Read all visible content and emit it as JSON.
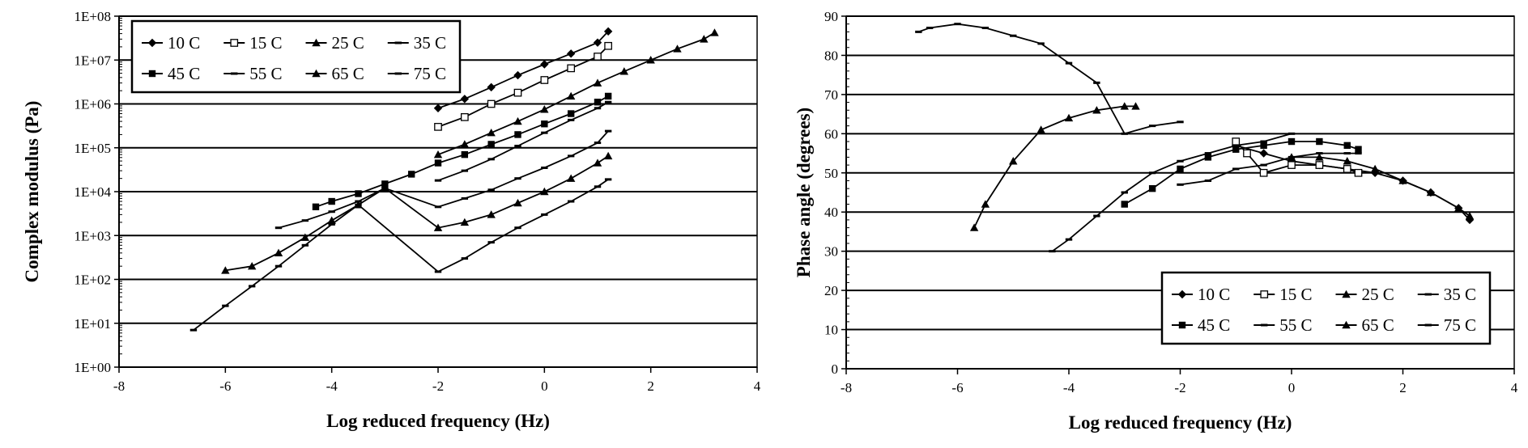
{
  "chart_data": [
    {
      "type": "line",
      "title": "",
      "xlabel": "Log reduced frequency (Hz)",
      "ylabel": "Complex modulus (Pa)",
      "xlim": [
        -8,
        4
      ],
      "ylim": [
        1,
        100000000
      ],
      "y_scale": "log",
      "xticks": [
        "-8",
        "-6",
        "-4",
        "-2",
        "0",
        "2",
        "4"
      ],
      "yticks": [
        "1E+00",
        "1E+01",
        "1E+02",
        "1E+03",
        "1E+04",
        "1E+05",
        "1E+06",
        "1E+07",
        "1E+08"
      ],
      "grid": "horizontal",
      "legend_position": "top-left",
      "series": [
        {
          "name": "10 C",
          "marker": "diamond",
          "x": [
            -2.0,
            -1.5,
            -1.0,
            -0.5,
            0.0,
            0.5,
            1.0,
            1.2
          ],
          "y": [
            800000,
            1300000,
            2400000,
            4500000,
            8000000,
            14000000,
            25000000,
            45000000
          ]
        },
        {
          "name": "15 C",
          "marker": "square-open",
          "x": [
            -2.0,
            -1.5,
            -1.0,
            -0.5,
            0.0,
            0.5,
            1.0,
            1.2
          ],
          "y": [
            300000,
            500000,
            1000000,
            1800000,
            3500000,
            6500000,
            12000000,
            21000000
          ]
        },
        {
          "name": "25 C",
          "marker": "triangle",
          "x": [
            -2.0,
            -1.5,
            -1.0,
            -0.5,
            0.0,
            0.5,
            1.0,
            1.5,
            2.0,
            2.5,
            3.0,
            3.2
          ],
          "y": [
            70000,
            120000,
            220000,
            400000,
            750000,
            1500000,
            3000000,
            5500000,
            10000000,
            18000000,
            30000000,
            42000000
          ]
        },
        {
          "name": "35 C",
          "marker": "dash",
          "x": [
            -2.0,
            -1.5,
            -1.0,
            -0.5,
            0.0,
            0.5,
            1.0,
            1.2
          ],
          "y": [
            18000,
            30000,
            55000,
            110000,
            220000,
            430000,
            800000,
            1100000
          ]
        },
        {
          "name": "45 C",
          "marker": "square",
          "x": [
            -4.3,
            -4.0,
            -3.5,
            -3.0,
            -2.5,
            -2.0,
            -1.5,
            -1.0,
            -0.5,
            0.0,
            0.5,
            1.0,
            1.2
          ],
          "y": [
            4500,
            6000,
            9000,
            15000,
            25000,
            45000,
            70000,
            120000,
            200000,
            350000,
            600000,
            1100000,
            1500000
          ]
        },
        {
          "name": "55 C",
          "marker": "dash",
          "x": [
            -5.0,
            -4.5,
            -4.0,
            -3.5,
            -3.0,
            -2.0,
            -1.5,
            -1.0,
            -0.5,
            0.0,
            0.5,
            1.0,
            1.2
          ],
          "y": [
            1500,
            2200,
            3500,
            6000,
            12000,
            4500,
            7000,
            11000,
            20000,
            35000,
            65000,
            130000,
            240000
          ]
        },
        {
          "name": "65 C",
          "marker": "triangle",
          "x": [
            -6.0,
            -5.5,
            -5.0,
            -4.5,
            -4.0,
            -3.5,
            -3.0,
            -2.0,
            -1.5,
            -1.0,
            -0.5,
            0.0,
            0.5,
            1.0,
            1.2
          ],
          "y": [
            160,
            200,
            400,
            900,
            2200,
            5000,
            12000,
            1500,
            2000,
            3000,
            5500,
            10000,
            20000,
            45000,
            65000
          ]
        },
        {
          "name": "75 C",
          "marker": "dash",
          "x": [
            -6.6,
            -6.0,
            -5.5,
            -5.0,
            -4.5,
            -4.0,
            -3.5,
            -2.0,
            -1.5,
            -1.0,
            -0.5,
            0.0,
            0.5,
            1.0,
            1.2
          ],
          "y": [
            7,
            25,
            70,
            200,
            600,
            1800,
            5000,
            150,
            300,
            700,
            1500,
            3000,
            6000,
            13000,
            19000
          ]
        }
      ]
    },
    {
      "type": "line",
      "title": "",
      "xlabel": "Log reduced frequency (Hz)",
      "ylabel": "Phase angle (degrees)",
      "xlim": [
        -8,
        4
      ],
      "ylim": [
        0,
        90
      ],
      "xticks": [
        "-8",
        "-6",
        "-4",
        "-2",
        "0",
        "2",
        "4"
      ],
      "yticks": [
        "0",
        "10",
        "20",
        "30",
        "40",
        "50",
        "60",
        "70",
        "80",
        "90"
      ],
      "grid": "horizontal",
      "legend_position": "bottom-right",
      "series": [
        {
          "name": "10 C",
          "marker": "diamond",
          "x": [
            -1.0,
            -0.5,
            0.0,
            0.5,
            1.0,
            1.5,
            2.0,
            2.5,
            3.0,
            3.2
          ],
          "y": [
            57,
            55,
            53,
            52,
            51,
            50,
            48,
            45,
            41,
            38
          ]
        },
        {
          "name": "15 C",
          "marker": "square-open",
          "x": [
            -1.0,
            -0.8,
            -0.5,
            0.0,
            0.5,
            1.0,
            1.2
          ],
          "y": [
            58,
            55,
            50,
            52,
            52,
            51,
            50
          ]
        },
        {
          "name": "25 C",
          "marker": "triangle",
          "x": [
            0.0,
            0.5,
            1.0,
            1.5,
            2.0,
            2.5,
            3.0,
            3.2
          ],
          "y": [
            54,
            54,
            53,
            51,
            48,
            45,
            41,
            39
          ]
        },
        {
          "name": "35 C",
          "marker": "dash",
          "x": [
            -2.0,
            -1.5,
            -1.0,
            -0.5,
            0.0,
            0.5,
            1.0,
            1.2
          ],
          "y": [
            47,
            48,
            51,
            52,
            54,
            55,
            55,
            55
          ]
        },
        {
          "name": "45 C",
          "marker": "square",
          "x": [
            -3.0,
            -2.5,
            -2.0,
            -1.5,
            -1.0,
            -0.5,
            0.0,
            0.5,
            1.0,
            1.2
          ],
          "y": [
            42,
            46,
            51,
            54,
            56,
            57,
            58,
            58,
            57,
            56
          ]
        },
        {
          "name": "55 C",
          "marker": "dash",
          "x": [
            -4.3,
            -4.0,
            -3.5,
            -3.0,
            -2.5,
            -2.0,
            -1.5,
            -1.0,
            -0.5,
            0.0
          ],
          "y": [
            30,
            33,
            39,
            45,
            50,
            53,
            55,
            57,
            58,
            60
          ]
        },
        {
          "name": "65 C",
          "marker": "triangle",
          "x": [
            -5.7,
            -5.5,
            -5.0,
            -4.5,
            -4.0,
            -3.5,
            -3.0,
            -2.8
          ],
          "y": [
            36,
            42,
            53,
            61,
            64,
            66,
            67,
            67
          ]
        },
        {
          "name": "75 C",
          "marker": "dash",
          "x": [
            -6.7,
            -6.5,
            -6.0,
            -5.5,
            -5.0,
            -4.5,
            -4.0,
            -3.5,
            -3.0,
            -2.5,
            -2.0
          ],
          "y": [
            86,
            87,
            88,
            87,
            85,
            83,
            78,
            73,
            60,
            62,
            63
          ]
        }
      ]
    }
  ]
}
